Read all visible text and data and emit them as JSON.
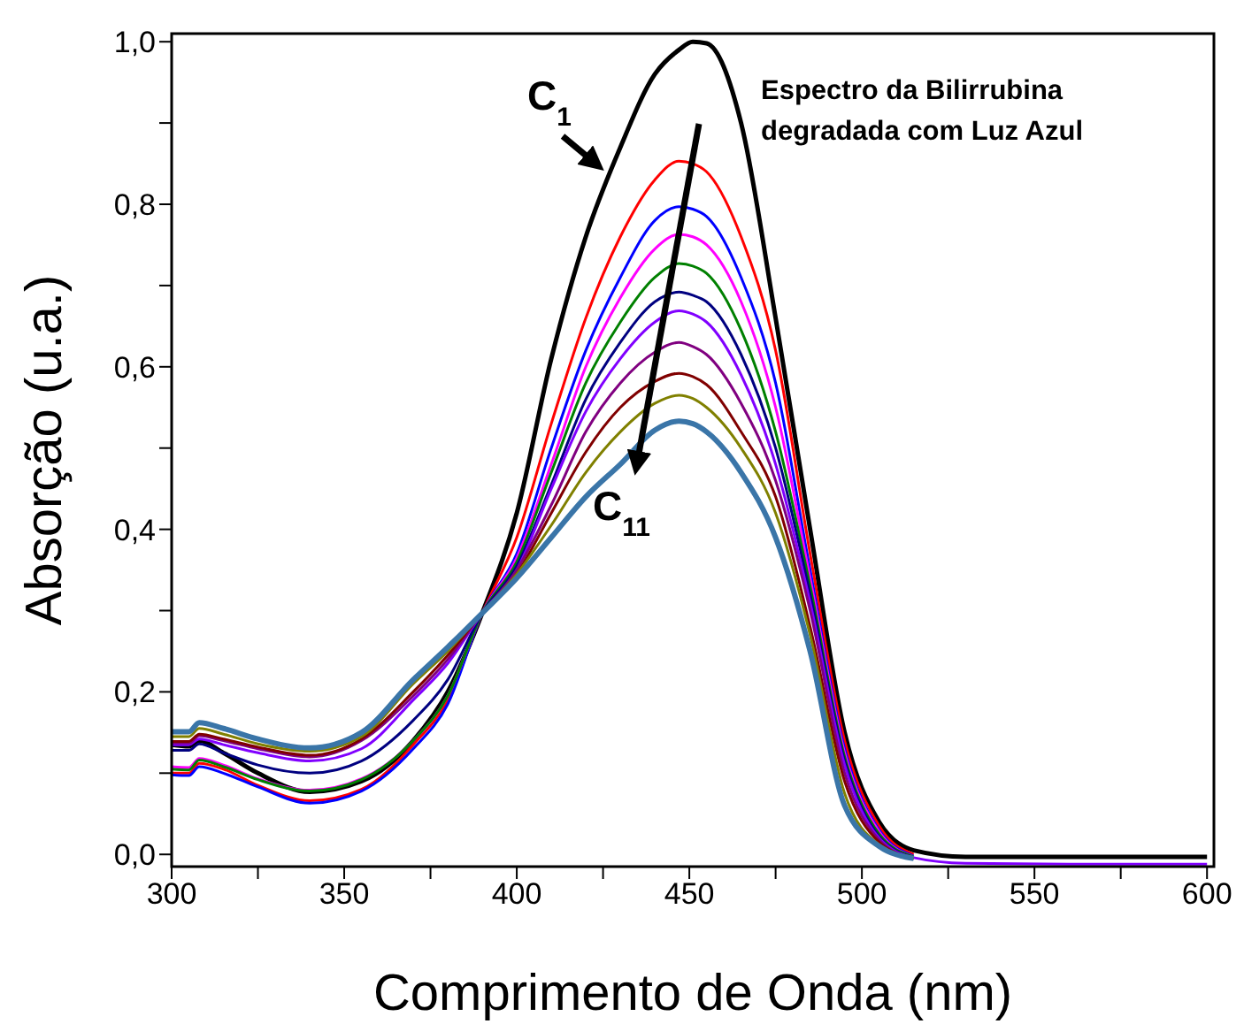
{
  "chart_data": {
    "type": "line",
    "xlabel": "Comprimento de Onda (nm)",
    "ylabel": "Absorção (u.a.)",
    "x": [
      300,
      305,
      308,
      315,
      325,
      340,
      355,
      370,
      380,
      390,
      400,
      410,
      420,
      430,
      440,
      447,
      451,
      455,
      465,
      475,
      485,
      495,
      505,
      515,
      530,
      560,
      600
    ],
    "xlim": [
      300,
      602
    ],
    "xticks": [
      300,
      {
        "value": 325,
        "label": null
      },
      350,
      {
        "value": 375,
        "label": null
      },
      400,
      {
        "value": 425,
        "label": null
      },
      450,
      {
        "value": 475,
        "label": null
      },
      500,
      {
        "value": 525,
        "label": null
      },
      550,
      {
        "value": 575,
        "label": null
      },
      600
    ],
    "ylim": [
      -0.015,
      1.01
    ],
    "yticks": [
      {
        "value": 0,
        "label": "0,0"
      },
      {
        "value": 0.1,
        "label": null
      },
      {
        "value": 0.2,
        "label": "0,2"
      },
      {
        "value": 0.3,
        "label": null
      },
      {
        "value": 0.4,
        "label": "0,4"
      },
      {
        "value": 0.5,
        "label": null
      },
      {
        "value": 0.6,
        "label": "0,6"
      },
      {
        "value": 0.7,
        "label": null
      },
      {
        "value": 0.8,
        "label": "0,8"
      },
      {
        "value": 0.9,
        "label": null
      },
      {
        "value": 1.0,
        "label": "1,0"
      }
    ],
    "series": [
      {
        "color": "#000000",
        "values": [
          0.135,
          0.133,
          0.14,
          0.125,
          0.1,
          0.077,
          0.09,
          0.14,
          0.2,
          0.297,
          0.42,
          0.61,
          0.76,
          0.87,
          0.96,
          0.99,
          1.0,
          0.998,
          0.9,
          0.66,
          0.4,
          0.15,
          0.04,
          0.005,
          -0.003,
          -0.003,
          -0.003
        ]
      },
      {
        "color": "#ff0000",
        "values": [
          0.1,
          0.1,
          0.112,
          0.105,
          0.085,
          0.066,
          0.08,
          0.135,
          0.19,
          0.297,
          0.39,
          0.53,
          0.66,
          0.76,
          0.83,
          0.853,
          0.85,
          0.84,
          0.76,
          0.62,
          0.37,
          0.14,
          0.035,
          0.0,
          null,
          null,
          null
        ]
      },
      {
        "color": "#0000ff",
        "values": [
          0.098,
          0.097,
          0.108,
          0.1,
          0.083,
          0.063,
          0.078,
          0.13,
          0.185,
          0.297,
          0.37,
          0.5,
          0.62,
          0.71,
          0.78,
          0.797,
          0.794,
          0.785,
          0.71,
          0.58,
          0.35,
          0.13,
          0.03,
          -0.002,
          null,
          null,
          null
        ]
      },
      {
        "color": "#ff00ff",
        "values": [
          0.108,
          0.107,
          0.118,
          0.11,
          0.093,
          0.079,
          0.093,
          0.14,
          0.195,
          0.297,
          0.365,
          0.48,
          0.6,
          0.685,
          0.745,
          0.763,
          0.76,
          0.75,
          0.68,
          0.55,
          0.34,
          0.125,
          0.028,
          -0.003,
          null,
          null,
          null
        ]
      },
      {
        "color": "#008000",
        "values": [
          0.105,
          0.104,
          0.116,
          0.108,
          0.092,
          0.078,
          0.092,
          0.14,
          0.195,
          0.297,
          0.36,
          0.47,
          0.58,
          0.655,
          0.71,
          0.727,
          0.724,
          0.715,
          0.645,
          0.52,
          0.33,
          0.12,
          0.025,
          -0.003,
          null,
          null,
          null
        ]
      },
      {
        "color": "#000080",
        "values": [
          0.128,
          0.128,
          0.136,
          0.125,
          0.11,
          0.1,
          0.115,
          0.165,
          0.215,
          0.297,
          0.355,
          0.455,
          0.56,
          0.63,
          0.68,
          0.692,
          0.688,
          0.68,
          0.615,
          0.5,
          0.32,
          0.115,
          0.022,
          -0.004,
          null,
          null,
          null
        ]
      },
      {
        "color": "#8000ff",
        "values": [
          0.135,
          0.135,
          0.142,
          0.135,
          0.125,
          0.115,
          0.13,
          0.19,
          0.235,
          0.297,
          0.35,
          0.45,
          0.545,
          0.61,
          0.655,
          0.669,
          0.665,
          0.655,
          0.59,
          0.48,
          0.31,
          0.11,
          0.02,
          -0.004,
          -0.011,
          -0.012,
          -0.012
        ]
      },
      {
        "color": "#800080",
        "values": [
          0.137,
          0.137,
          0.146,
          0.14,
          0.13,
          0.12,
          0.14,
          0.195,
          0.24,
          0.297,
          0.35,
          0.43,
          0.52,
          0.58,
          0.618,
          0.63,
          0.625,
          0.615,
          0.555,
          0.46,
          0.3,
          0.1,
          0.018,
          -0.005,
          null,
          null,
          null
        ]
      },
      {
        "color": "#800000",
        "values": [
          0.139,
          0.139,
          0.148,
          0.142,
          0.132,
          0.122,
          0.142,
          0.2,
          0.245,
          0.297,
          0.345,
          0.42,
          0.495,
          0.55,
          0.582,
          0.592,
          0.588,
          0.578,
          0.52,
          0.44,
          0.28,
          0.09,
          0.015,
          -0.005,
          null,
          null,
          null
        ]
      },
      {
        "color": "#808000",
        "values": [
          0.145,
          0.145,
          0.155,
          0.148,
          0.136,
          0.127,
          0.145,
          0.21,
          0.25,
          0.297,
          0.345,
          0.405,
          0.47,
          0.52,
          0.555,
          0.565,
          0.561,
          0.55,
          0.5,
          0.42,
          0.27,
          0.075,
          0.012,
          -0.005,
          null,
          null,
          null
        ]
      },
      {
        "color": "#3a75a8",
        "values": [
          0.151,
          0.151,
          0.162,
          0.155,
          0.142,
          0.131,
          0.15,
          0.215,
          0.255,
          0.297,
          0.34,
          0.39,
          0.44,
          0.48,
          0.522,
          0.533,
          0.53,
          0.52,
          0.47,
          0.39,
          0.25,
          0.06,
          0.01,
          -0.005,
          null,
          null,
          null
        ]
      }
    ],
    "annotations": [
      "C$_{1}$",
      "C$_{11}$",
      "Espectro da Bilirrubina degradada com Luz Azul"
    ]
  }
}
